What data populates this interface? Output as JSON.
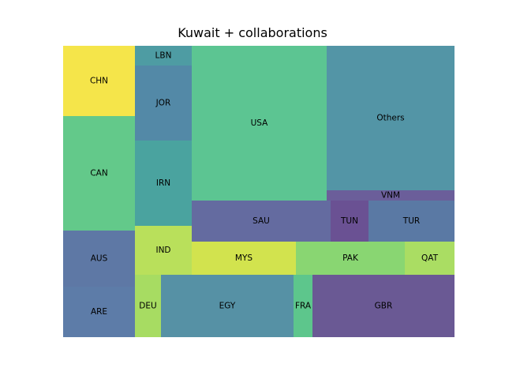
{
  "chart_data": {
    "type": "treemap",
    "title": "Kuwait + collaborations",
    "cells": [
      {
        "label": "CHN",
        "value": 8.0,
        "color": "#f5e54a"
      },
      {
        "label": "CAN",
        "value": 13.0,
        "color": "#63c98a"
      },
      {
        "label": "AUS",
        "value": 6.5,
        "color": "#5e78a5"
      },
      {
        "label": "ARE",
        "value": 5.5,
        "color": "#5d7ca8"
      },
      {
        "label": "LBN",
        "value": 1.6,
        "color": "#4e9ca3"
      },
      {
        "label": "JOR",
        "value": 6.1,
        "color": "#5389a7"
      },
      {
        "label": "IRN",
        "value": 6.6,
        "color": "#4aa39f"
      },
      {
        "label": "IND",
        "value": 4.0,
        "color": "#b9e05b"
      },
      {
        "label": "DEU",
        "value": 2.5,
        "color": "#a7dc62"
      },
      {
        "label": "EGY",
        "value": 13.0,
        "color": "#5691a5"
      },
      {
        "label": "FRA",
        "value": 2.0,
        "color": "#5dc68c"
      },
      {
        "label": "USA",
        "value": 33.0,
        "color": "#5cc592"
      },
      {
        "label": "SAU",
        "value": 8.7,
        "color": "#646ba0"
      },
      {
        "label": "TUN",
        "value": 2.4,
        "color": "#6a5193"
      },
      {
        "label": "TUR",
        "value": 5.4,
        "color": "#5a79a4"
      },
      {
        "label": "MYS",
        "value": 7.0,
        "color": "#d2e34e"
      },
      {
        "label": "PAK",
        "value": 7.3,
        "color": "#89d672"
      },
      {
        "label": "QAT",
        "value": 3.3,
        "color": "#aadd63"
      },
      {
        "label": "GBR",
        "value": 13.8,
        "color": "#6a5994"
      },
      {
        "label": "Others",
        "value": 29.2,
        "color": "#5395a6"
      },
      {
        "label": "VNM",
        "value": 1.9,
        "color": "#6b5e9a"
      }
    ]
  }
}
